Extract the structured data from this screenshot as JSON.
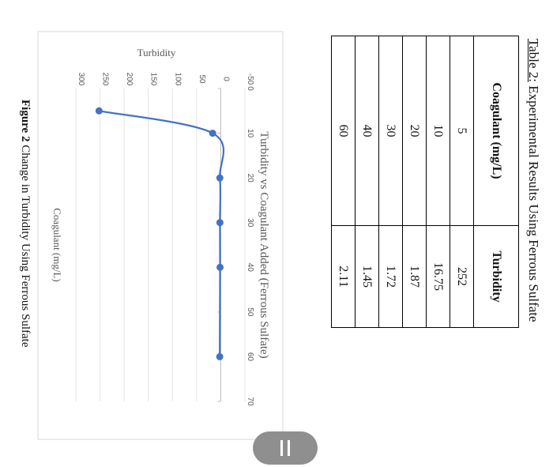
{
  "table": {
    "caption_label": "Table 2:",
    "caption_text": " Experimental Results Using Ferrous Sulfate",
    "headers": [
      "Coagulant (mg/L)",
      "Turbidity"
    ],
    "rows": [
      [
        "5",
        "252"
      ],
      [
        "10",
        "16.75"
      ],
      [
        "20",
        "1.87"
      ],
      [
        "30",
        "1.72"
      ],
      [
        "40",
        "1.45"
      ],
      [
        "60",
        "2.11"
      ]
    ]
  },
  "figure": {
    "caption_label": "Figure 2",
    "caption_text": " Change in Turbidity Using Ferrous Sulfate"
  },
  "chart_data": {
    "type": "line",
    "title": "Turbidity vs Coagulant Added (Ferrous Sulfate)",
    "xlabel": "Coagulant (mg/L)",
    "ylabel": "Turbidity",
    "x": [
      5,
      10,
      20,
      30,
      40,
      60
    ],
    "series": [
      {
        "values": [
          252,
          16.75,
          1.87,
          1.72,
          1.45,
          2.11
        ]
      }
    ],
    "xlim": [
      0,
      70
    ],
    "ylim": [
      -50,
      300
    ],
    "xticks": [
      "0",
      "10",
      "20",
      "30",
      "40",
      "50",
      "60",
      "70"
    ],
    "yticks": [
      "-50",
      "0",
      "50",
      "100",
      "150",
      "200",
      "250",
      "300"
    ],
    "grid": true,
    "color": "#4472c4",
    "smooth": true,
    "orientation": "rotated-90-clockwise"
  }
}
